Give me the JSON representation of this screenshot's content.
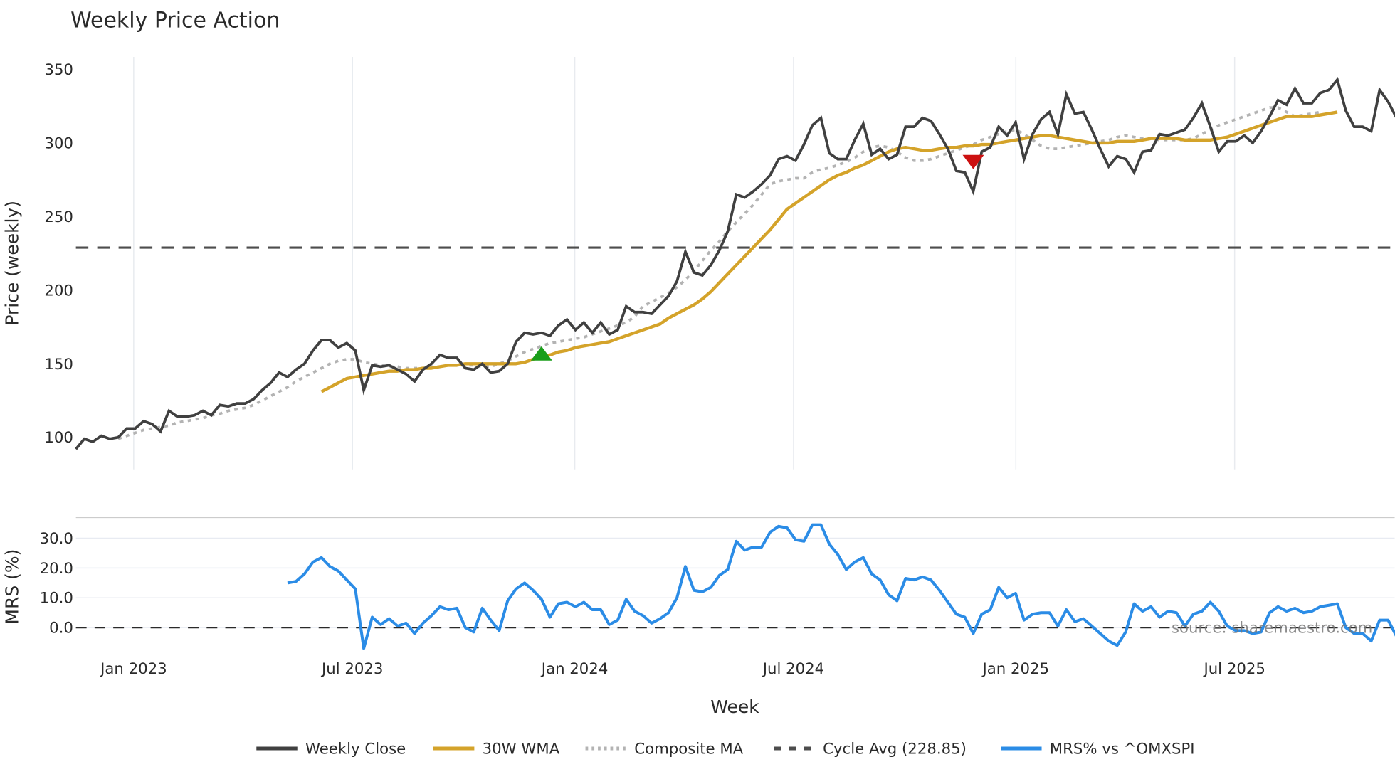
{
  "chart_data": [
    {
      "type": "line",
      "title": "Weekly Price Action",
      "xlabel": "Week",
      "ylabel": "Price (weekly)",
      "ylim": [
        88,
        358
      ],
      "yticks": [
        100,
        150,
        200,
        250,
        300,
        350
      ],
      "x_tick_labels": [
        "Jan 2023",
        "Jul 2023",
        "Jan 2024",
        "Jul 2024",
        "Jan 2025",
        "Jul 2025"
      ],
      "x_start": "2022-11",
      "x_interval": "weekly",
      "grid": {
        "x": true,
        "y": false
      },
      "reference_line": {
        "name": "Cycle Avg (228.85)",
        "value": 228.85
      },
      "series": [
        {
          "name": "Weekly Close",
          "color": "#404040",
          "start_index": 0,
          "values": [
            92,
            99,
            97,
            101,
            99,
            100,
            106,
            106,
            111,
            109,
            104,
            118,
            114,
            114,
            115,
            118,
            115,
            122,
            121,
            123,
            123,
            126,
            132,
            137,
            144,
            141,
            146,
            150,
            159,
            166,
            166,
            161,
            164,
            159,
            132,
            149,
            148,
            149,
            146,
            143,
            138,
            146,
            150,
            156,
            154,
            154,
            147,
            146,
            150,
            144,
            145,
            150,
            165,
            171,
            170,
            171,
            169,
            176,
            180,
            173,
            178,
            171,
            178,
            170,
            173,
            189,
            185,
            185,
            184,
            190,
            196,
            206,
            226,
            212,
            210,
            217,
            227,
            240,
            265,
            263,
            267,
            272,
            278,
            289,
            291,
            288,
            299,
            312,
            317,
            293,
            289,
            289,
            302,
            313,
            292,
            296,
            289,
            292,
            311,
            311,
            317,
            315,
            306,
            296,
            281,
            280,
            267,
            294,
            297,
            311,
            305,
            314,
            289,
            306,
            316,
            321,
            306,
            333,
            320,
            321,
            309,
            296,
            284,
            291,
            289,
            280,
            294,
            295,
            306,
            305,
            307,
            309,
            317,
            327,
            311,
            294,
            301,
            301,
            305,
            300,
            308,
            318,
            329,
            326,
            337,
            327,
            327,
            334,
            336,
            343,
            322,
            311,
            311,
            308,
            336,
            328,
            317
          ]
        },
        {
          "name": "30W WMA",
          "color": "#D4A32A",
          "start_index": 29,
          "values": [
            131,
            134,
            137,
            140,
            141,
            142,
            143,
            144,
            145,
            145,
            146,
            146,
            147,
            147,
            148,
            149,
            149,
            150,
            150,
            150,
            150,
            150,
            150,
            150,
            151,
            153,
            155,
            156,
            158,
            159,
            161,
            162,
            163,
            164,
            165,
            167,
            169,
            171,
            173,
            175,
            177,
            181,
            184,
            187,
            190,
            194,
            199,
            205,
            211,
            217,
            223,
            229,
            235,
            241,
            248,
            255,
            259,
            263,
            267,
            271,
            275,
            278,
            280,
            283,
            285,
            288,
            291,
            294,
            296,
            297,
            296,
            295,
            295,
            296,
            297,
            297,
            298,
            298,
            299,
            299,
            300,
            301,
            302,
            303,
            304,
            305,
            305,
            304,
            303,
            302,
            301,
            300,
            300,
            300,
            301,
            301,
            301,
            302,
            303,
            303,
            303,
            303,
            302,
            302,
            302,
            302,
            303,
            304,
            306,
            308,
            310,
            312,
            314,
            316,
            318,
            318,
            318,
            318,
            319,
            320,
            321
          ]
        },
        {
          "name": "Composite MA",
          "color": "#B3B3B3",
          "start_index": 5,
          "values": [
            99,
            101,
            103,
            105,
            106,
            107,
            108,
            110,
            111,
            112,
            113,
            115,
            116,
            118,
            119,
            120,
            122,
            125,
            128,
            131,
            134,
            138,
            141,
            144,
            147,
            150,
            152,
            153,
            153,
            151,
            150,
            149,
            148,
            148,
            147,
            147,
            147,
            148,
            148,
            149,
            149,
            149,
            149,
            148,
            148,
            150,
            152,
            155,
            158,
            160,
            162,
            164,
            165,
            166,
            167,
            168,
            170,
            172,
            174,
            176,
            178,
            182,
            189,
            192,
            195,
            198,
            202,
            207,
            213,
            220,
            227,
            233,
            240,
            246,
            252,
            258,
            265,
            272,
            274,
            275,
            276,
            276,
            280,
            282,
            283,
            285,
            287,
            290,
            294,
            297,
            298,
            297,
            294,
            290,
            288,
            288,
            289,
            291,
            293,
            295,
            297,
            299,
            302,
            304,
            306,
            308,
            309,
            306,
            302,
            298,
            296,
            296,
            297,
            298,
            299,
            300,
            301,
            302,
            304,
            305,
            304,
            303,
            303,
            302,
            302,
            302,
            302,
            303,
            306,
            309,
            312,
            314,
            316,
            318,
            320,
            322,
            324,
            324,
            321,
            318,
            319,
            320,
            321
          ]
        }
      ],
      "markers": [
        {
          "type": "buy-triangle-up",
          "color": "#1a9e1a",
          "x_index": 55,
          "value": 157
        },
        {
          "type": "sell-triangle-down",
          "color": "#cc1111",
          "x_index": 106,
          "value": 287
        }
      ]
    },
    {
      "type": "line",
      "title": "",
      "xlabel": "Week",
      "ylabel": "MRS (%)",
      "ylim": [
        -8,
        36
      ],
      "yticks": [
        0.0,
        10.0,
        20.0,
        30.0
      ],
      "ytick_labels": [
        "0.0",
        "10.0",
        "20.0",
        "30.0"
      ],
      "grid": {
        "x": false,
        "y": true
      },
      "reference_line": {
        "name": "zero",
        "value": 0
      },
      "series": [
        {
          "name": "MRS% vs ^OMXSPI",
          "color": "#2B8CE6",
          "start_index": 25,
          "values": [
            15,
            15.5,
            18,
            22,
            23.5,
            20.5,
            19,
            16,
            13,
            -7,
            3.5,
            1,
            3,
            0.5,
            1.5,
            -2,
            1.5,
            4,
            7,
            6,
            6.5,
            0,
            -1.5,
            6.5,
            2.5,
            -1,
            9,
            13,
            15,
            12.5,
            9.5,
            3.5,
            8,
            8.5,
            7,
            8.5,
            6,
            6,
            1,
            2.5,
            9.5,
            5.5,
            4,
            1.5,
            3,
            5,
            10,
            20.5,
            12.5,
            12,
            13.5,
            17.5,
            19.5,
            29,
            26,
            27,
            27,
            32,
            34,
            33.5,
            29.5,
            29,
            34.5,
            34.5,
            28,
            24.5,
            19.5,
            22,
            23.5,
            18,
            16,
            11,
            9,
            16.5,
            16,
            17,
            16,
            12.5,
            8.5,
            4.5,
            3.5,
            -2,
            4.5,
            6,
            13.5,
            10,
            11.5,
            2.5,
            4.5,
            5,
            5,
            0.5,
            6,
            2,
            3,
            0.5,
            -2,
            -4.5,
            -6,
            -1.5,
            8,
            5.5,
            7,
            3.5,
            5.5,
            5,
            0.5,
            4.5,
            5.5,
            8.5,
            5.5,
            0.5,
            -1,
            -1,
            -2,
            -1.5,
            5,
            7,
            5.5,
            6.5,
            5,
            5.5,
            7,
            7.5,
            8,
            0,
            -2,
            -2,
            -4.5,
            2.5,
            2.5,
            -3
          ]
        }
      ]
    }
  ],
  "legend": {
    "items": [
      {
        "label": "Weekly Close",
        "style": "solid",
        "color": "#404040"
      },
      {
        "label": "30W WMA",
        "style": "solid",
        "color": "#D4A32A"
      },
      {
        "label": "Composite MA",
        "style": "dotted",
        "color": "#B3B3B3"
      },
      {
        "label": "Cycle Avg (228.85)",
        "style": "dashed",
        "color": "#4d4d4d"
      },
      {
        "label": "MRS% vs ^OMXSPI",
        "style": "solid",
        "color": "#2B8CE6"
      }
    ]
  },
  "source": "source: sharemaestro.com"
}
